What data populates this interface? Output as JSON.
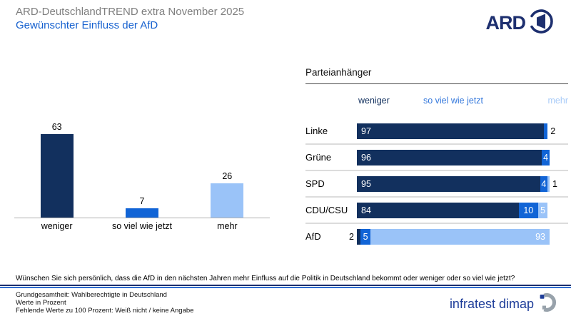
{
  "header": {
    "title": "ARD-DeutschlandTREND extra November 2025",
    "subtitle": "Gewünschter Einfluss der AfD",
    "ard_logo_text": "ARD"
  },
  "colors": {
    "weniger": "#12305e",
    "so_viel_wie_jetzt": "#1164d6",
    "mehr": "#9ac3f8",
    "title_gray": "#7f7f7f",
    "subtitle_blue": "#1661cf",
    "brand_blue": "#1e3d99"
  },
  "chart_data": [
    {
      "type": "bar",
      "orientation": "vertical",
      "title": "",
      "categories": [
        "weniger",
        "so viel wie jetzt",
        "mehr"
      ],
      "values": [
        63,
        7,
        26
      ],
      "bar_colors": [
        "#12305e",
        "#1164d6",
        "#9ac3f8"
      ],
      "ylim": [
        0,
        70
      ],
      "grid": false,
      "value_labels": "above"
    },
    {
      "type": "bar",
      "orientation": "horizontal-stacked",
      "title": "Parteianhänger",
      "legend_headers": [
        "weniger",
        "so viel wie jetzt",
        "mehr"
      ],
      "categories": [
        "Linke",
        "Grüne",
        "SPD",
        "CDU/CSU",
        "AfD"
      ],
      "series": [
        {
          "name": "weniger",
          "color": "#12305e",
          "values": [
            97,
            96,
            95,
            84,
            2
          ]
        },
        {
          "name": "so viel wie jetzt",
          "color": "#1164d6",
          "values": [
            2,
            4,
            4,
            10,
            5
          ]
        },
        {
          "name": "mehr",
          "color": "#9ac3f8",
          "values": [
            null,
            null,
            1,
            5,
            93
          ]
        }
      ],
      "xmax": 100,
      "legend_position": "top"
    }
  ],
  "question": "Wünschen Sie sich persönlich, dass die AfD in den nächsten Jahren mehr Einfluss auf die Politik in Deutschland bekommt oder weniger oder so viel wie jetzt?",
  "footer": {
    "notes": [
      "Grundgesamtheit: Wahlberechtigte in Deutschland",
      "Werte in Prozent",
      "Fehlende Werte zu 100 Prozent: Weiß nicht / keine Angabe"
    ],
    "brand": "infratest dimap"
  }
}
